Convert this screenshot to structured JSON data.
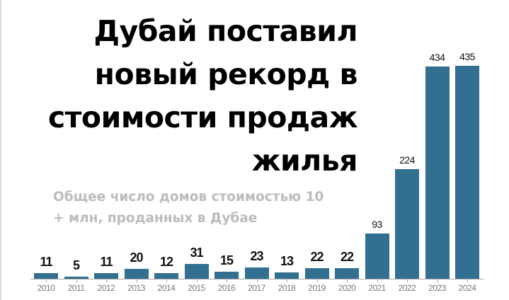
{
  "title": {
    "lines": [
      "Дубай поставил",
      "новый рекорд в",
      "стоимости продаж",
      "жилья"
    ]
  },
  "subtitle": {
    "lines": [
      "Общее число домов стоимостью 10",
      "+ млн, проданных в Дубае"
    ]
  },
  "colors": {
    "bar": "#336f91",
    "title": "#000000",
    "subtitle": "#bcbcbc",
    "axis": "#a9a9a9",
    "year_label": "#777777"
  },
  "chart_data": {
    "type": "bar",
    "title": "Дубай поставил новый рекорд в стоимости продаж жилья",
    "subtitle": "Общее число домов стоимостью 10 + млн, проданных в Дубае",
    "xlabel": "",
    "ylabel": "",
    "categories": [
      "2010",
      "2011",
      "2012",
      "2013",
      "2014",
      "2015",
      "2016",
      "2017",
      "2018",
      "2019",
      "2020",
      "2021",
      "2022",
      "2023",
      "2024"
    ],
    "values": [
      11,
      5,
      11,
      20,
      12,
      31,
      15,
      23,
      13,
      22,
      22,
      93,
      224,
      434,
      435
    ],
    "ylim": [
      0,
      435
    ],
    "grid": false,
    "legend": null,
    "data_labels": true
  }
}
